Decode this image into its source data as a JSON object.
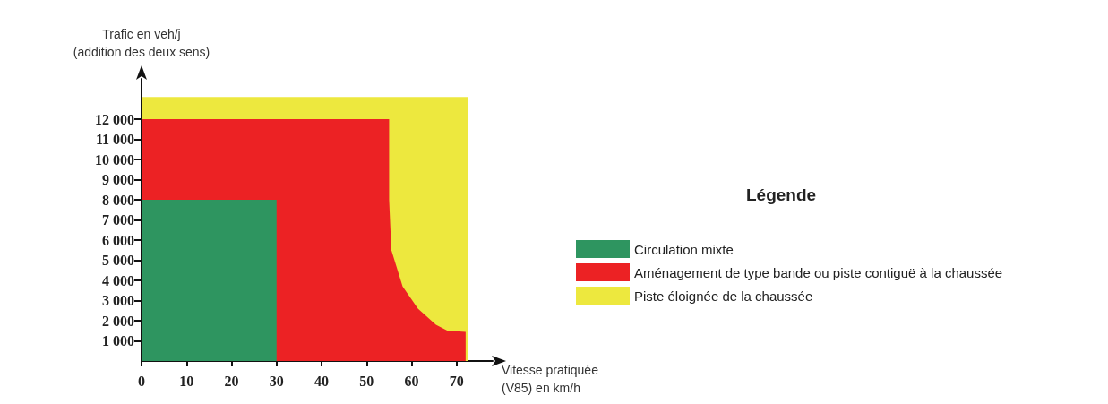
{
  "chart_data": {
    "type": "area",
    "xlabel": "Vitesse pratiquée\n(V85) en km/h",
    "ylabel": "Trafic en veh/j\n(addition des deux sens)",
    "legend_title": "Légende",
    "legend": "right",
    "xlim": [
      0,
      78
    ],
    "ylim": [
      0,
      14000
    ],
    "xticks": [
      0,
      10,
      20,
      30,
      40,
      50,
      60,
      70
    ],
    "yticks": [
      {
        "value": 1000,
        "label": "1 000"
      },
      {
        "value": 2000,
        "label": "2 000"
      },
      {
        "value": 3000,
        "label": "3 000"
      },
      {
        "value": 4000,
        "label": "4 000"
      },
      {
        "value": 5000,
        "label": "5 000"
      },
      {
        "value": 6000,
        "label": "6 000"
      },
      {
        "value": 7000,
        "label": "7 000"
      },
      {
        "value": 8000,
        "label": "8 000"
      },
      {
        "value": 9000,
        "label": "9 000"
      },
      {
        "value": 10000,
        "label": "10 000"
      },
      {
        "value": 11000,
        "label": "11 000"
      },
      {
        "value": 12000,
        "label": "12 000"
      }
    ],
    "grid": false,
    "series": [
      {
        "name": "Piste éloignée de la chaussée",
        "color": "#ede83e",
        "x": [
          0,
          72.5
        ],
        "values": [
          13100,
          13100
        ]
      },
      {
        "name": "Aménagement de type bande ou piste contiguë à la chaussée",
        "color": "#ec2224",
        "x": [
          0,
          55,
          55,
          55.5,
          58,
          61.4,
          65.4,
          68,
          72
        ],
        "values": [
          12000,
          12000,
          8000,
          5500,
          3700,
          2600,
          1800,
          1500,
          1450
        ]
      },
      {
        "name": "Circulation mixte",
        "color": "#2e9560",
        "x": [
          0,
          30
        ],
        "values": [
          8000,
          8000
        ]
      }
    ]
  }
}
